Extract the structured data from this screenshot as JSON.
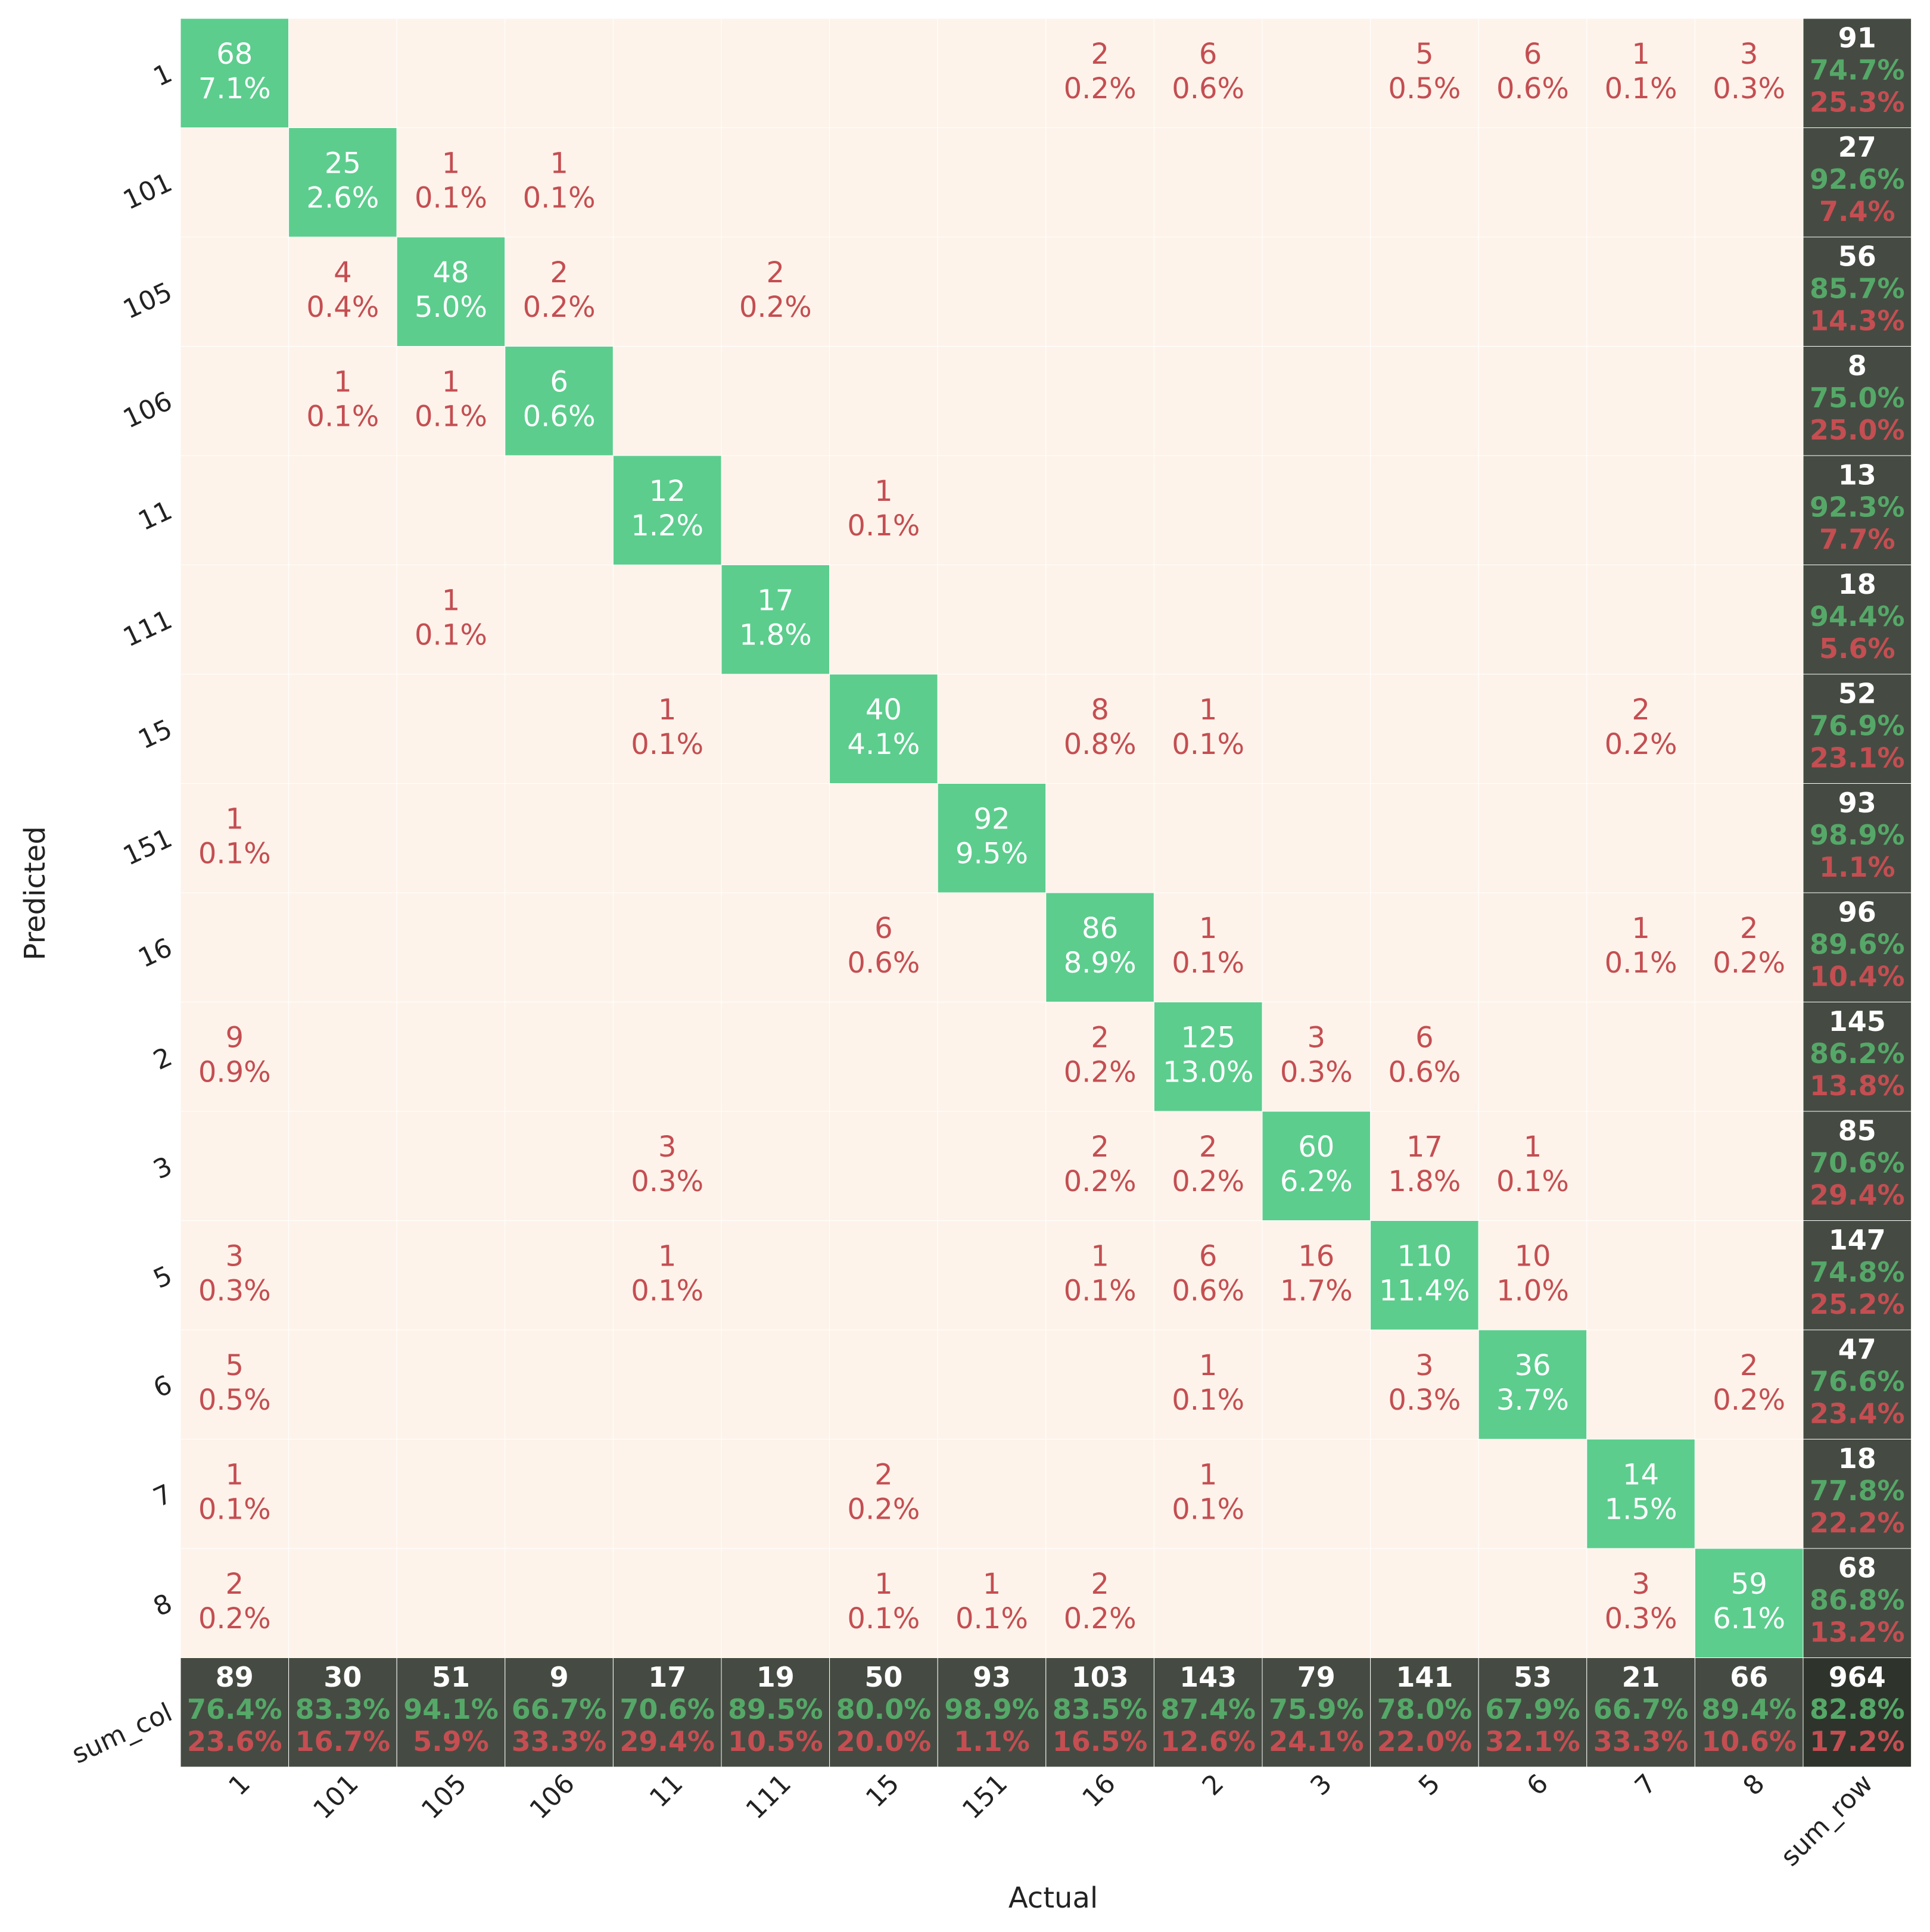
{
  "chart_data": {
    "type": "confusion_matrix",
    "x_label": "Actual",
    "y_label": "Predicted",
    "columns": [
      "1",
      "101",
      "105",
      "106",
      "11",
      "111",
      "15",
      "151",
      "16",
      "2",
      "3",
      "5",
      "6",
      "7",
      "8"
    ],
    "rows": [
      "1",
      "101",
      "105",
      "106",
      "11",
      "111",
      "15",
      "151",
      "16",
      "2",
      "3",
      "5",
      "6",
      "7",
      "8"
    ],
    "total_column_label": "sum_row",
    "total_row_label": "sum_col",
    "cells": [
      [
        {
          "count": 68,
          "percent": "7.1%"
        },
        null,
        null,
        null,
        null,
        null,
        null,
        null,
        {
          "count": 2,
          "percent": "0.2%"
        },
        {
          "count": 6,
          "percent": "0.6%"
        },
        null,
        {
          "count": 5,
          "percent": "0.5%"
        },
        {
          "count": 6,
          "percent": "0.6%"
        },
        {
          "count": 1,
          "percent": "0.1%"
        },
        {
          "count": 3,
          "percent": "0.3%"
        }
      ],
      [
        null,
        {
          "count": 25,
          "percent": "2.6%"
        },
        {
          "count": 1,
          "percent": "0.1%"
        },
        {
          "count": 1,
          "percent": "0.1%"
        },
        null,
        null,
        null,
        null,
        null,
        null,
        null,
        null,
        null,
        null,
        null
      ],
      [
        null,
        {
          "count": 4,
          "percent": "0.4%"
        },
        {
          "count": 48,
          "percent": "5.0%"
        },
        {
          "count": 2,
          "percent": "0.2%"
        },
        null,
        {
          "count": 2,
          "percent": "0.2%"
        },
        null,
        null,
        null,
        null,
        null,
        null,
        null,
        null,
        null
      ],
      [
        null,
        {
          "count": 1,
          "percent": "0.1%"
        },
        {
          "count": 1,
          "percent": "0.1%"
        },
        {
          "count": 6,
          "percent": "0.6%"
        },
        null,
        null,
        null,
        null,
        null,
        null,
        null,
        null,
        null,
        null,
        null
      ],
      [
        null,
        null,
        null,
        null,
        {
          "count": 12,
          "percent": "1.2%"
        },
        null,
        {
          "count": 1,
          "percent": "0.1%"
        },
        null,
        null,
        null,
        null,
        null,
        null,
        null,
        null
      ],
      [
        null,
        null,
        {
          "count": 1,
          "percent": "0.1%"
        },
        null,
        null,
        {
          "count": 17,
          "percent": "1.8%"
        },
        null,
        null,
        null,
        null,
        null,
        null,
        null,
        null,
        null
      ],
      [
        null,
        null,
        null,
        null,
        {
          "count": 1,
          "percent": "0.1%"
        },
        null,
        {
          "count": 40,
          "percent": "4.1%"
        },
        null,
        {
          "count": 8,
          "percent": "0.8%"
        },
        {
          "count": 1,
          "percent": "0.1%"
        },
        null,
        null,
        null,
        {
          "count": 2,
          "percent": "0.2%"
        },
        null
      ],
      [
        {
          "count": 1,
          "percent": "0.1%"
        },
        null,
        null,
        null,
        null,
        null,
        null,
        {
          "count": 92,
          "percent": "9.5%"
        },
        null,
        null,
        null,
        null,
        null,
        null,
        null
      ],
      [
        null,
        null,
        null,
        null,
        null,
        null,
        {
          "count": 6,
          "percent": "0.6%"
        },
        null,
        {
          "count": 86,
          "percent": "8.9%"
        },
        {
          "count": 1,
          "percent": "0.1%"
        },
        null,
        null,
        null,
        {
          "count": 1,
          "percent": "0.1%"
        },
        {
          "count": 2,
          "percent": "0.2%"
        }
      ],
      [
        {
          "count": 9,
          "percent": "0.9%"
        },
        null,
        null,
        null,
        null,
        null,
        null,
        null,
        {
          "count": 2,
          "percent": "0.2%"
        },
        {
          "count": 125,
          "percent": "13.0%"
        },
        {
          "count": 3,
          "percent": "0.3%"
        },
        {
          "count": 6,
          "percent": "0.6%"
        },
        null,
        null,
        null
      ],
      [
        null,
        null,
        null,
        null,
        {
          "count": 3,
          "percent": "0.3%"
        },
        null,
        null,
        null,
        {
          "count": 2,
          "percent": "0.2%"
        },
        {
          "count": 2,
          "percent": "0.2%"
        },
        {
          "count": 60,
          "percent": "6.2%"
        },
        {
          "count": 17,
          "percent": "1.8%"
        },
        {
          "count": 1,
          "percent": "0.1%"
        },
        null,
        null
      ],
      [
        {
          "count": 3,
          "percent": "0.3%"
        },
        null,
        null,
        null,
        {
          "count": 1,
          "percent": "0.1%"
        },
        null,
        null,
        null,
        {
          "count": 1,
          "percent": "0.1%"
        },
        {
          "count": 6,
          "percent": "0.6%"
        },
        {
          "count": 16,
          "percent": "1.7%"
        },
        {
          "count": 110,
          "percent": "11.4%"
        },
        {
          "count": 10,
          "percent": "1.0%"
        },
        null,
        null
      ],
      [
        {
          "count": 5,
          "percent": "0.5%"
        },
        null,
        null,
        null,
        null,
        null,
        null,
        null,
        null,
        {
          "count": 1,
          "percent": "0.1%"
        },
        null,
        {
          "count": 3,
          "percent": "0.3%"
        },
        {
          "count": 36,
          "percent": "3.7%"
        },
        null,
        {
          "count": 2,
          "percent": "0.2%"
        }
      ],
      [
        {
          "count": 1,
          "percent": "0.1%"
        },
        null,
        null,
        null,
        null,
        null,
        {
          "count": 2,
          "percent": "0.2%"
        },
        null,
        null,
        {
          "count": 1,
          "percent": "0.1%"
        },
        null,
        null,
        null,
        {
          "count": 14,
          "percent": "1.5%"
        },
        null
      ],
      [
        {
          "count": 2,
          "percent": "0.2%"
        },
        null,
        null,
        null,
        null,
        null,
        {
          "count": 1,
          "percent": "0.1%"
        },
        {
          "count": 1,
          "percent": "0.1%"
        },
        {
          "count": 2,
          "percent": "0.2%"
        },
        null,
        null,
        null,
        null,
        {
          "count": 3,
          "percent": "0.3%"
        },
        {
          "count": 59,
          "percent": "6.1%"
        }
      ]
    ],
    "row_totals": [
      {
        "count": 91,
        "correct": "74.7%",
        "error": "25.3%"
      },
      {
        "count": 27,
        "correct": "92.6%",
        "error": "7.4%"
      },
      {
        "count": 56,
        "correct": "85.7%",
        "error": "14.3%"
      },
      {
        "count": 8,
        "correct": "75.0%",
        "error": "25.0%"
      },
      {
        "count": 13,
        "correct": "92.3%",
        "error": "7.7%"
      },
      {
        "count": 18,
        "correct": "94.4%",
        "error": "5.6%"
      },
      {
        "count": 52,
        "correct": "76.9%",
        "error": "23.1%"
      },
      {
        "count": 93,
        "correct": "98.9%",
        "error": "1.1%"
      },
      {
        "count": 96,
        "correct": "89.6%",
        "error": "10.4%"
      },
      {
        "count": 145,
        "correct": "86.2%",
        "error": "13.8%"
      },
      {
        "count": 85,
        "correct": "70.6%",
        "error": "29.4%"
      },
      {
        "count": 147,
        "correct": "74.8%",
        "error": "25.2%"
      },
      {
        "count": 47,
        "correct": "76.6%",
        "error": "23.4%"
      },
      {
        "count": 18,
        "correct": "77.8%",
        "error": "22.2%"
      },
      {
        "count": 68,
        "correct": "86.8%",
        "error": "13.2%"
      }
    ],
    "col_totals": [
      {
        "count": 89,
        "correct": "76.4%",
        "error": "23.6%"
      },
      {
        "count": 30,
        "correct": "83.3%",
        "error": "16.7%"
      },
      {
        "count": 51,
        "correct": "94.1%",
        "error": "5.9%"
      },
      {
        "count": 9,
        "correct": "66.7%",
        "error": "33.3%"
      },
      {
        "count": 17,
        "correct": "70.6%",
        "error": "29.4%"
      },
      {
        "count": 19,
        "correct": "89.5%",
        "error": "10.5%"
      },
      {
        "count": 50,
        "correct": "80.0%",
        "error": "20.0%"
      },
      {
        "count": 93,
        "correct": "98.9%",
        "error": "1.1%"
      },
      {
        "count": 103,
        "correct": "83.5%",
        "error": "16.5%"
      },
      {
        "count": 143,
        "correct": "87.4%",
        "error": "12.6%"
      },
      {
        "count": 79,
        "correct": "75.9%",
        "error": "24.1%"
      },
      {
        "count": 141,
        "correct": "78.0%",
        "error": "22.0%"
      },
      {
        "count": 53,
        "correct": "67.9%",
        "error": "32.1%"
      },
      {
        "count": 21,
        "correct": "66.7%",
        "error": "33.3%"
      },
      {
        "count": 66,
        "correct": "89.4%",
        "error": "10.6%"
      }
    ],
    "grand_total": {
      "count": 964,
      "correct": "82.8%",
      "error": "17.2%"
    },
    "colors": {
      "diagonal": "#5ccd8d",
      "off_diagonal": "#fdf3ea",
      "total": "#454b42",
      "grand_total": "#2e342c",
      "diagonal_text": "#ffffff",
      "off_diagonal_text": "#c44e52",
      "total_count_text": "#ffffff",
      "correct_text": "#55a868",
      "error_text": "#c44e52"
    }
  }
}
